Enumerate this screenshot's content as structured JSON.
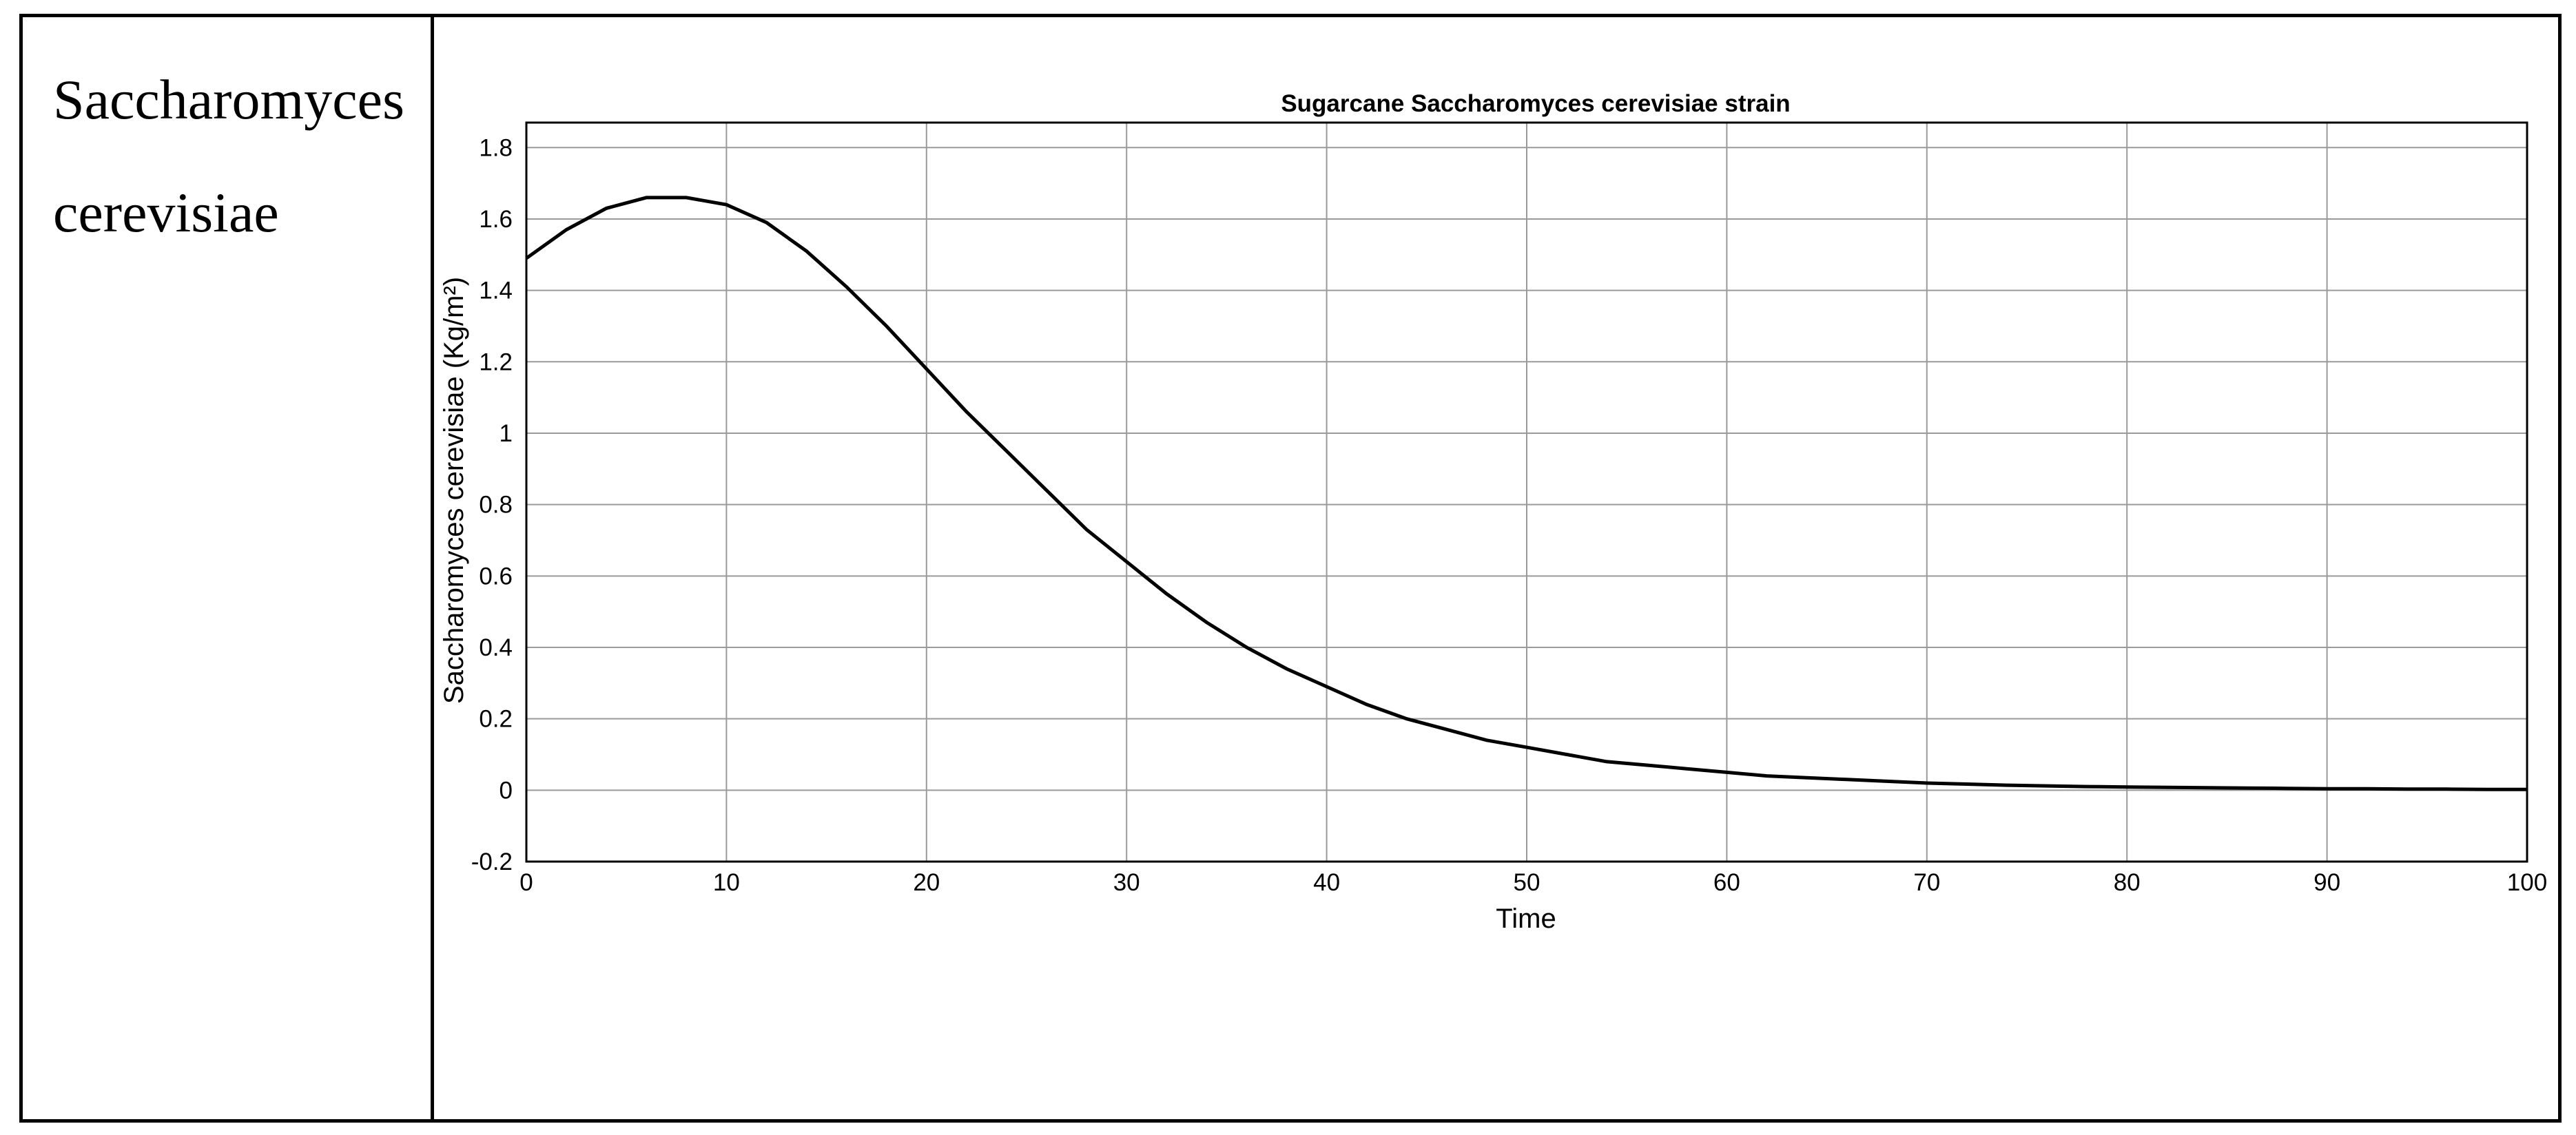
{
  "table": {
    "row_label": "Saccharomyces cerevisiae"
  },
  "chart_data": {
    "type": "line",
    "title": "Sugarcane Saccharomyces cerevisiae strain",
    "xlabel": "Time",
    "ylabel": "Saccharomyces cerevisiae (Kg/m²)",
    "xlim": [
      0,
      100
    ],
    "ylim": [
      -0.2,
      1.87
    ],
    "xticks": [
      0,
      10,
      20,
      30,
      40,
      50,
      60,
      70,
      80,
      90,
      100
    ],
    "yticks": [
      -0.2,
      0,
      0.2,
      0.4,
      0.6,
      0.8,
      1,
      1.2,
      1.4,
      1.6,
      1.8
    ],
    "ytick_labels": [
      "-0.2",
      "0",
      "0.2",
      "0.4",
      "0.6",
      "0.8",
      "1",
      "1.2",
      "1.4",
      "1.6",
      "1.8"
    ],
    "grid": true,
    "line_color": "#000000",
    "series": [
      {
        "x": [
          0,
          2,
          4,
          6,
          8,
          10,
          12,
          14,
          16,
          18,
          20,
          22,
          24,
          26,
          28,
          30,
          32,
          34,
          36,
          38,
          40,
          42,
          44,
          46,
          48,
          50,
          52,
          54,
          56,
          58,
          60,
          62,
          64,
          66,
          68,
          70,
          72,
          74,
          76,
          78,
          80,
          82,
          84,
          86,
          88,
          90,
          92,
          94,
          96,
          98,
          100
        ],
        "values": [
          1.49,
          1.57,
          1.63,
          1.66,
          1.66,
          1.64,
          1.59,
          1.51,
          1.41,
          1.3,
          1.18,
          1.06,
          0.95,
          0.84,
          0.73,
          0.64,
          0.55,
          0.47,
          0.4,
          0.34,
          0.29,
          0.24,
          0.2,
          0.17,
          0.14,
          0.12,
          0.1,
          0.08,
          0.07,
          0.06,
          0.05,
          0.04,
          0.035,
          0.03,
          0.025,
          0.02,
          0.017,
          0.014,
          0.012,
          0.01,
          0.009,
          0.008,
          0.007,
          0.006,
          0.005,
          0.004,
          0.004,
          0.003,
          0.003,
          0.002,
          0.002
        ]
      }
    ]
  }
}
